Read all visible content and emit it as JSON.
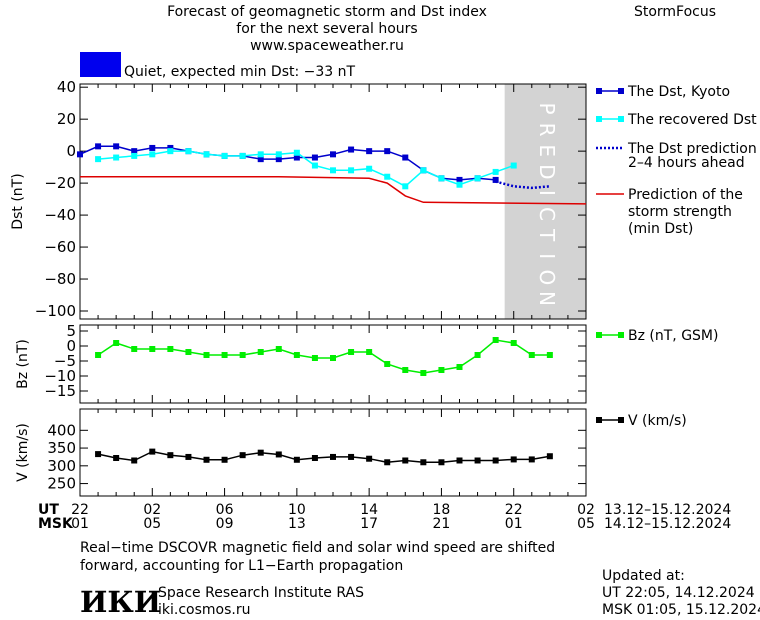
{
  "header": {
    "title_lines": [
      "Forecast of geomagnetic storm and Dst index",
      "for the next several hours",
      "www.spaceweather.ru"
    ],
    "brand": "StormFocus",
    "status_label": "Quiet, expected min Dst: −33 nT",
    "status_color": "#0000ee"
  },
  "legend": {
    "dst_kyoto": "The Dst, Kyoto",
    "recovered": "The recovered Dst",
    "prediction_lines": [
      "The Dst prediction",
      "2–4 hours ahead"
    ],
    "strength_lines": [
      "Prediction of the",
      "storm strength",
      "(min Dst)"
    ],
    "bz": "Bz (nT, GSM)",
    "v": "V (km/s)"
  },
  "colors": {
    "dst_kyoto": "#0000cc",
    "recovered": "#00ffff",
    "prediction": "#0000cc",
    "strength": "#dd0000",
    "bz": "#00ee00",
    "v": "#000000",
    "prediction_band": "#d3d3d3"
  },
  "prediction_word": "PREDICTION",
  "time_axis": {
    "ut_label": "UT",
    "msk_label": "MSK",
    "ut_ticks": [
      "22",
      "02",
      "06",
      "10",
      "14",
      "18",
      "22",
      "02"
    ],
    "msk_ticks": [
      "01",
      "05",
      "09",
      "13",
      "17",
      "21",
      "01",
      "05"
    ],
    "ut_range": "13.12–15.12.2024",
    "msk_range": "14.12–15.12.2024"
  },
  "footer": {
    "note_lines": [
      "Real−time DSCOVR magnetic field and solar wind speed are shifted",
      "forward, accounting for L1−Earth propagation"
    ],
    "logo": "ИКИ",
    "institute": "Space Research Institute RAS",
    "site": "iki.cosmos.ru",
    "updated_label": "Updated at:",
    "updated_ut": "UT   22:05, 14.12.2024",
    "updated_msk": "MSK 01:05, 15.12.2024"
  },
  "chart_data": [
    {
      "type": "line",
      "ylabel": "Dst (nT)",
      "xlim": [
        0,
        28
      ],
      "ylim": [
        -105,
        42
      ],
      "yticks": [
        40,
        20,
        0,
        -20,
        -40,
        -60,
        -80,
        -100
      ],
      "prediction_start": 23.5,
      "series": [
        {
          "name": "The Dst, Kyoto",
          "x": [
            0,
            1,
            2,
            3,
            4,
            5,
            6,
            7,
            8,
            9,
            10,
            11,
            12,
            13,
            14,
            15,
            16,
            17,
            18,
            19,
            20,
            21,
            22,
            23
          ],
          "values": [
            -2,
            3,
            3,
            0,
            2,
            2,
            0,
            -2,
            -3,
            -3,
            -5,
            -5,
            -4,
            -4,
            -2,
            1,
            0,
            0,
            -4,
            -12,
            -17,
            -18,
            -17,
            -18
          ]
        },
        {
          "name": "The recovered Dst",
          "x": [
            1,
            2,
            3,
            4,
            5,
            6,
            7,
            8,
            9,
            10,
            11,
            12,
            13,
            14,
            15,
            16,
            17,
            18,
            19,
            20,
            21,
            22,
            23,
            24
          ],
          "values": [
            -5,
            -4,
            -3,
            -2,
            0,
            0,
            -2,
            -3,
            -3,
            -2,
            -2,
            -1,
            -9,
            -12,
            -12,
            -11,
            -16,
            -22,
            -12,
            -17,
            -21,
            -17,
            -13,
            -9
          ]
        },
        {
          "name": "The Dst prediction 2–4 hours ahead",
          "x": [
            23,
            24,
            25,
            26
          ],
          "values": [
            -19,
            -22,
            -23,
            -22
          ]
        },
        {
          "name": "Prediction of the storm strength (min Dst)",
          "x": [
            0,
            11,
            16,
            17,
            18,
            19,
            28
          ],
          "values": [
            -16,
            -16,
            -17,
            -20,
            -28,
            -32,
            -33
          ]
        }
      ]
    },
    {
      "type": "line",
      "ylabel": "Bz (nT)",
      "xlim": [
        0,
        28
      ],
      "ylim": [
        -19,
        7
      ],
      "yticks": [
        5,
        0,
        -5,
        -10,
        -15
      ],
      "series": [
        {
          "name": "Bz (nT, GSM)",
          "x": [
            1,
            2,
            3,
            4,
            5,
            6,
            7,
            8,
            9,
            10,
            11,
            12,
            13,
            14,
            15,
            16,
            17,
            18,
            19,
            20,
            21,
            22,
            23,
            24,
            25,
            26
          ],
          "values": [
            -3,
            1,
            -1,
            -1,
            -1,
            -2,
            -3,
            -3,
            -3,
            -2,
            -1,
            -3,
            -4,
            -4,
            -2,
            -2,
            -6,
            -8,
            -9,
            -8,
            -7,
            -3,
            2,
            1,
            -3,
            -3
          ]
        }
      ]
    },
    {
      "type": "line",
      "ylabel": "V (km/s)",
      "xlim": [
        0,
        28
      ],
      "ylim": [
        215,
        460
      ],
      "yticks": [
        400,
        350,
        300,
        250
      ],
      "series": [
        {
          "name": "V (km/s)",
          "x": [
            1,
            2,
            3,
            4,
            5,
            6,
            7,
            8,
            9,
            10,
            11,
            12,
            13,
            14,
            15,
            16,
            17,
            18,
            19,
            20,
            21,
            22,
            23,
            24,
            25,
            26
          ],
          "values": [
            333,
            322,
            315,
            340,
            330,
            325,
            317,
            317,
            330,
            337,
            332,
            317,
            322,
            325,
            325,
            320,
            310,
            315,
            310,
            310,
            315,
            315,
            315,
            318,
            318,
            327
          ]
        }
      ]
    }
  ]
}
